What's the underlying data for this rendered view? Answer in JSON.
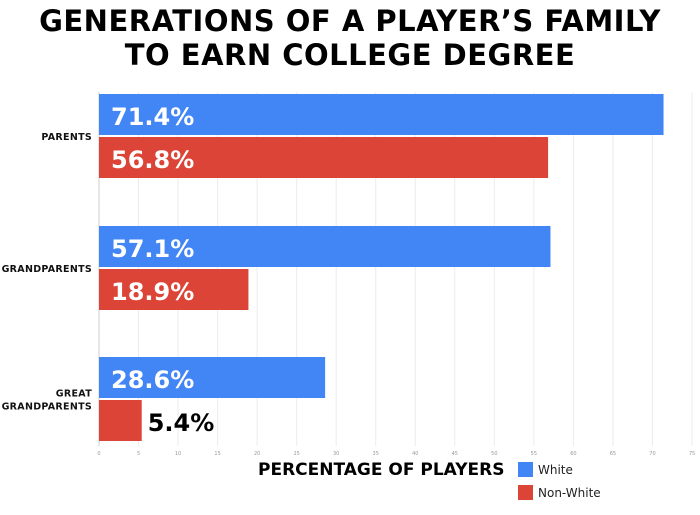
{
  "chart_data": {
    "type": "bar",
    "orientation": "horizontal",
    "title": "GENERATIONS OF A PLAYER'S FAMILY TO EARN COLLEGE DEGREE",
    "title_lines": [
      "GENERATIONS OF A PLAYER’S FAMILY",
      "TO EARN COLLEGE DEGREE"
    ],
    "categories": [
      [
        "PARENTS"
      ],
      [
        "GRANDPARENTS"
      ],
      [
        "GREAT",
        "GRANDPARENTS"
      ]
    ],
    "series": [
      {
        "name": "White",
        "color": "#4285f4",
        "values": [
          71.4,
          57.1,
          28.6
        ],
        "labels": [
          "71.4%",
          "57.1%",
          "28.6%"
        ]
      },
      {
        "name": "Non-White",
        "color": "#db4437",
        "values": [
          56.8,
          18.9,
          5.4
        ],
        "labels": [
          "56.8%",
          "18.9%",
          "5.4%"
        ]
      }
    ],
    "xlabel": "PERCENTAGE OF PLAYERS",
    "ylabel": "",
    "xlim": [
      0,
      75
    ],
    "xticks": [
      0,
      5,
      10,
      15,
      20,
      25,
      30,
      35,
      40,
      45,
      50,
      55,
      60,
      65,
      70,
      75
    ],
    "grid": true,
    "legend": "bottom-right"
  }
}
